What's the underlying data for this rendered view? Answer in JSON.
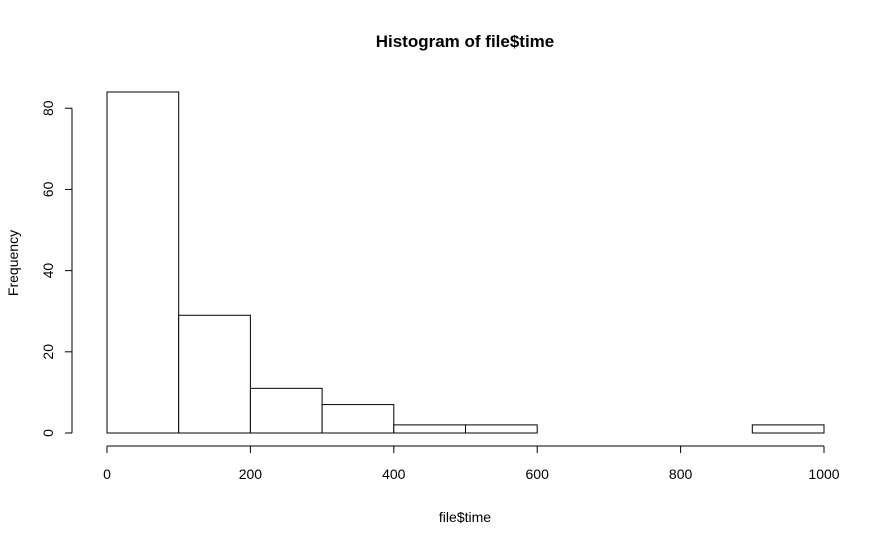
{
  "chart_data": {
    "type": "bar",
    "title": "Histogram of file$time",
    "xlabel": "file$time",
    "ylabel": "Frequency",
    "bins": [
      {
        "from": 0,
        "to": 100,
        "count": 84
      },
      {
        "from": 100,
        "to": 200,
        "count": 29
      },
      {
        "from": 200,
        "to": 300,
        "count": 11
      },
      {
        "from": 300,
        "to": 400,
        "count": 7
      },
      {
        "from": 400,
        "to": 500,
        "count": 2
      },
      {
        "from": 500,
        "to": 600,
        "count": 2
      },
      {
        "from": 600,
        "to": 700,
        "count": 0
      },
      {
        "from": 700,
        "to": 800,
        "count": 0
      },
      {
        "from": 800,
        "to": 900,
        "count": 0
      },
      {
        "from": 900,
        "to": 1000,
        "count": 2
      }
    ],
    "xlim": [
      0,
      1000
    ],
    "ylim": [
      0,
      84
    ],
    "x_ticks": [
      "0",
      "200",
      "400",
      "600",
      "800",
      "1000"
    ],
    "y_ticks": [
      "0",
      "20",
      "40",
      "60",
      "80"
    ],
    "grid": false,
    "bar_fill": "#ffffff",
    "bar_stroke": "#000000"
  }
}
